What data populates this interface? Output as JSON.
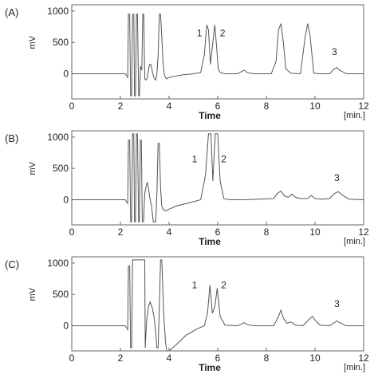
{
  "chart_data": [
    {
      "type": "line",
      "panel_label": "(A)",
      "xlabel": "Time",
      "x_unit": "[min.]",
      "ylabel": "mV",
      "xlim": [
        0,
        12
      ],
      "ylim": [
        -400,
        1100
      ],
      "x_ticks": [
        "0",
        "2",
        "4",
        "6",
        "8",
        "10",
        "12"
      ],
      "y_ticks": [
        "0",
        "500",
        "1000"
      ],
      "peak_labels": [
        {
          "text": "1",
          "x": 5.25,
          "y": 600
        },
        {
          "text": "2",
          "x": 6.2,
          "y": 600
        },
        {
          "text": "3",
          "x": 10.8,
          "y": 300
        }
      ],
      "series": [
        {
          "x": [
            0,
            2.2,
            2.3,
            2.33,
            2.38,
            2.42,
            2.46,
            2.5,
            2.55,
            2.58,
            2.62,
            2.66,
            2.7,
            2.75,
            2.78,
            2.83,
            2.88,
            2.92,
            2.96,
            3.0,
            3.05,
            3.1,
            3.15,
            3.2,
            3.25,
            3.3,
            3.38,
            3.45,
            3.5,
            3.55,
            3.6,
            3.65,
            3.7,
            3.75,
            3.8,
            3.85,
            3.9,
            4.0,
            4.2,
            4.5,
            5.0,
            5.3,
            5.45,
            5.55,
            5.62,
            5.7,
            5.8,
            5.88,
            5.95,
            6.02,
            6.1,
            6.3,
            6.8,
            7.0,
            7.1,
            7.2,
            7.5,
            8.2,
            8.4,
            8.5,
            8.6,
            8.7,
            8.8,
            9.0,
            9.4,
            9.6,
            9.7,
            9.8,
            9.95,
            10.2,
            10.6,
            10.8,
            10.9,
            11.0,
            11.3,
            12.0
          ],
          "y": [
            0,
            0,
            -60,
            950,
            950,
            -350,
            -350,
            950,
            950,
            -350,
            -350,
            950,
            950,
            -350,
            -350,
            120,
            60,
            950,
            950,
            -80,
            -100,
            -60,
            50,
            150,
            150,
            60,
            -70,
            -100,
            0,
            300,
            950,
            950,
            600,
            200,
            0,
            -60,
            -80,
            -60,
            -40,
            -20,
            0,
            20,
            300,
            780,
            700,
            150,
            500,
            780,
            450,
            80,
            20,
            0,
            0,
            40,
            60,
            20,
            0,
            0,
            200,
            700,
            800,
            500,
            80,
            10,
            0,
            600,
            800,
            600,
            10,
            0,
            0,
            80,
            100,
            60,
            0,
            0
          ]
        }
      ]
    },
    {
      "type": "line",
      "panel_label": "(B)",
      "xlabel": "Time",
      "x_unit": "[min.]",
      "ylabel": "mV",
      "xlim": [
        0,
        12
      ],
      "ylim": [
        -400,
        1100
      ],
      "x_ticks": [
        "0",
        "2",
        "4",
        "6",
        "8",
        "10",
        "12"
      ],
      "y_ticks": [
        "0",
        "500",
        "1000"
      ],
      "peak_labels": [
        {
          "text": "1",
          "x": 5.05,
          "y": 600
        },
        {
          "text": "2",
          "x": 6.25,
          "y": 600
        },
        {
          "text": "3",
          "x": 10.9,
          "y": 300
        }
      ],
      "series": [
        {
          "x": [
            0,
            2.2,
            2.3,
            2.33,
            2.38,
            2.42,
            2.46,
            2.5,
            2.55,
            2.58,
            2.62,
            2.66,
            2.7,
            2.75,
            2.78,
            2.82,
            2.86,
            2.9,
            2.95,
            3.0,
            3.05,
            3.1,
            3.15,
            3.2,
            3.28,
            3.35,
            3.45,
            3.5,
            3.55,
            3.6,
            3.65,
            3.7,
            3.75,
            3.85,
            4.0,
            4.3,
            4.8,
            5.3,
            5.5,
            5.62,
            5.72,
            5.8,
            5.9,
            6.0,
            6.1,
            6.25,
            6.5,
            7.0,
            8.3,
            8.45,
            8.6,
            8.75,
            8.9,
            9.05,
            9.2,
            9.4,
            9.7,
            9.85,
            10.0,
            10.3,
            10.6,
            10.8,
            10.95,
            11.1,
            11.4,
            12.0
          ],
          "y": [
            0,
            0,
            -60,
            950,
            950,
            -350,
            -350,
            1050,
            1050,
            -350,
            -350,
            1050,
            1050,
            -350,
            -350,
            950,
            950,
            -350,
            -350,
            100,
            200,
            280,
            200,
            50,
            -100,
            -350,
            -350,
            100,
            900,
            900,
            200,
            -100,
            -150,
            -180,
            -150,
            -100,
            -50,
            0,
            400,
            1050,
            1050,
            300,
            1050,
            1050,
            300,
            20,
            0,
            0,
            20,
            100,
            140,
            60,
            40,
            90,
            40,
            20,
            20,
            70,
            20,
            10,
            20,
            100,
            130,
            80,
            10,
            0
          ]
        }
      ]
    },
    {
      "type": "line",
      "panel_label": "(C)",
      "xlabel": "Time",
      "x_unit": "[min.]",
      "ylabel": "mV",
      "xlim": [
        0,
        12
      ],
      "ylim": [
        -400,
        1100
      ],
      "x_ticks": [
        "0",
        "2",
        "4",
        "6",
        "8",
        "10",
        "12"
      ],
      "y_ticks": [
        "0",
        "500",
        "1000"
      ],
      "peak_labels": [
        {
          "text": "1",
          "x": 5.05,
          "y": 600
        },
        {
          "text": "2",
          "x": 6.25,
          "y": 600
        },
        {
          "text": "3",
          "x": 10.9,
          "y": 300
        }
      ],
      "series": [
        {
          "x": [
            0,
            2.2,
            2.3,
            2.33,
            2.38,
            2.42,
            2.46,
            2.5,
            2.55,
            2.58,
            2.62,
            2.66,
            2.7,
            2.75,
            2.78,
            2.82,
            2.86,
            3.0,
            3.02,
            3.08,
            3.15,
            3.22,
            3.3,
            3.38,
            3.45,
            3.5,
            3.55,
            3.6,
            3.65,
            3.7,
            3.78,
            3.85,
            3.9,
            4.0,
            4.3,
            4.7,
            5.2,
            5.45,
            5.58,
            5.68,
            5.78,
            5.88,
            5.98,
            6.1,
            6.3,
            6.8,
            7.0,
            7.1,
            7.2,
            7.5,
            8.3,
            8.5,
            8.6,
            8.7,
            8.85,
            9.0,
            9.1,
            9.2,
            9.5,
            9.8,
            9.9,
            10.0,
            10.2,
            10.6,
            10.8,
            10.9,
            11.0,
            11.3,
            12.0
          ],
          "y": [
            0,
            0,
            -60,
            950,
            950,
            -350,
            -350,
            1050,
            1050,
            1050,
            1050,
            1050,
            1050,
            1050,
            1050,
            1050,
            1050,
            1050,
            -350,
            100,
            300,
            380,
            300,
            150,
            -100,
            -350,
            -350,
            300,
            1050,
            1050,
            200,
            -250,
            -400,
            -400,
            -300,
            -150,
            -40,
            0,
            200,
            650,
            200,
            300,
            600,
            150,
            10,
            0,
            30,
            50,
            20,
            0,
            0,
            150,
            250,
            120,
            40,
            60,
            40,
            10,
            0,
            120,
            150,
            90,
            10,
            0,
            50,
            80,
            50,
            0,
            0
          ]
        }
      ]
    }
  ]
}
